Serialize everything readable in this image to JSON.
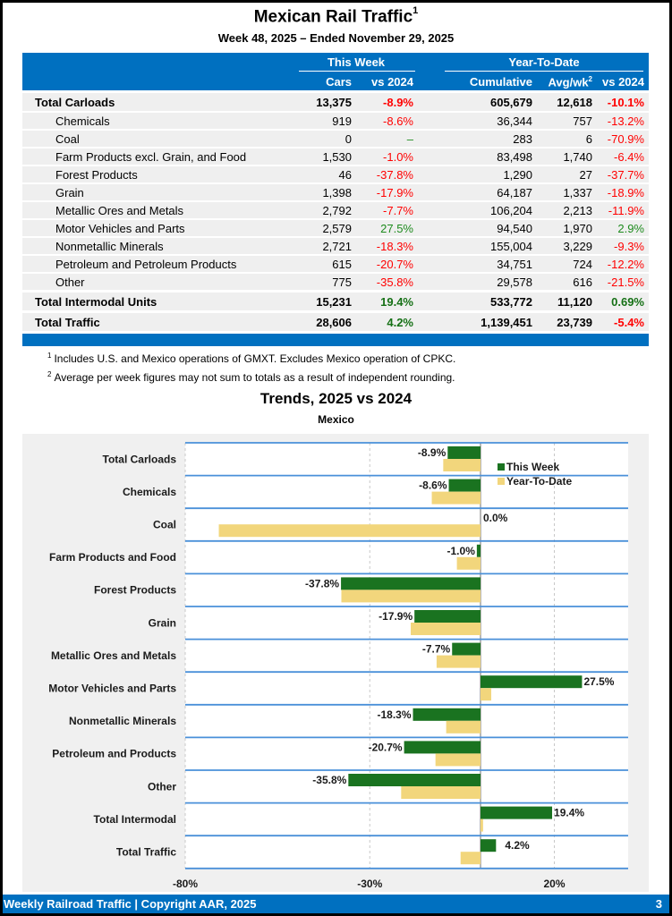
{
  "header": {
    "title": "Mexican Rail Traffic",
    "title_footnote": "1",
    "subtitle": "Week 48, 2025 – Ended November 29, 2025"
  },
  "table": {
    "groups": {
      "this_week": "This Week",
      "ytd": "Year-To-Date"
    },
    "columns": {
      "cars": "Cars",
      "tw_vs": "vs 2024",
      "cumulative": "Cumulative",
      "avg": "Avg/wk",
      "avg_footnote": "2",
      "ytd_vs": "vs 2024"
    },
    "rows": [
      {
        "label": "Total Carloads",
        "cars": "13,375",
        "tw_vs": "-8.9%",
        "tw_sign": "neg",
        "cum": "605,679",
        "avg": "12,618",
        "ytd_vs": "-10.1%",
        "ytd_sign": "neg",
        "type": "total"
      },
      {
        "label": "Chemicals",
        "cars": "919",
        "tw_vs": "-8.6%",
        "tw_sign": "neg",
        "cum": "36,344",
        "avg": "757",
        "ytd_vs": "-13.2%",
        "ytd_sign": "neg",
        "type": "sub"
      },
      {
        "label": "Coal",
        "cars": "0",
        "tw_vs": "–",
        "tw_sign": "neu",
        "cum": "283",
        "avg": "6",
        "ytd_vs": "-70.9%",
        "ytd_sign": "neg",
        "type": "sub"
      },
      {
        "label": "Farm Products excl. Grain, and Food",
        "cars": "1,530",
        "tw_vs": "-1.0%",
        "tw_sign": "neg",
        "cum": "83,498",
        "avg": "1,740",
        "ytd_vs": "-6.4%",
        "ytd_sign": "neg",
        "type": "sub"
      },
      {
        "label": "Forest Products",
        "cars": "46",
        "tw_vs": "-37.8%",
        "tw_sign": "neg",
        "cum": "1,290",
        "avg": "27",
        "ytd_vs": "-37.7%",
        "ytd_sign": "neg",
        "type": "sub"
      },
      {
        "label": "Grain",
        "cars": "1,398",
        "tw_vs": "-17.9%",
        "tw_sign": "neg",
        "cum": "64,187",
        "avg": "1,337",
        "ytd_vs": "-18.9%",
        "ytd_sign": "neg",
        "type": "sub"
      },
      {
        "label": "Metallic Ores and Metals",
        "cars": "2,792",
        "tw_vs": "-7.7%",
        "tw_sign": "neg",
        "cum": "106,204",
        "avg": "2,213",
        "ytd_vs": "-11.9%",
        "ytd_sign": "neg",
        "type": "sub"
      },
      {
        "label": "Motor Vehicles and Parts",
        "cars": "2,579",
        "tw_vs": "27.5%",
        "tw_sign": "pos",
        "cum": "94,540",
        "avg": "1,970",
        "ytd_vs": "2.9%",
        "ytd_sign": "pos",
        "type": "sub"
      },
      {
        "label": "Nonmetallic Minerals",
        "cars": "2,721",
        "tw_vs": "-18.3%",
        "tw_sign": "neg",
        "cum": "155,004",
        "avg": "3,229",
        "ytd_vs": "-9.3%",
        "ytd_sign": "neg",
        "type": "sub"
      },
      {
        "label": "Petroleum and Petroleum Products",
        "cars": "615",
        "tw_vs": "-20.7%",
        "tw_sign": "neg",
        "cum": "34,751",
        "avg": "724",
        "ytd_vs": "-12.2%",
        "ytd_sign": "neg",
        "type": "sub"
      },
      {
        "label": "Other",
        "cars": "775",
        "tw_vs": "-35.8%",
        "tw_sign": "neg",
        "cum": "29,578",
        "avg": "616",
        "ytd_vs": "-21.5%",
        "ytd_sign": "neg",
        "type": "sub"
      },
      {
        "label": "Total Intermodal Units",
        "cars": "15,231",
        "tw_vs": "19.4%",
        "tw_sign": "pos",
        "cum": "533,772",
        "avg": "11,120",
        "ytd_vs": "0.69%",
        "ytd_sign": "pos",
        "type": "total"
      },
      {
        "label": "Total Traffic",
        "cars": "28,606",
        "tw_vs": "4.2%",
        "tw_sign": "pos",
        "cum": "1,139,451",
        "avg": "23,739",
        "ytd_vs": "-5.4%",
        "ytd_sign": "neg",
        "type": "total"
      }
    ]
  },
  "notes": [
    {
      "mark": "1",
      "text": "Includes U.S. and Mexico operations of GMXT. Excludes Mexico operation of CPKC."
    },
    {
      "mark": "2",
      "text": "Average per week figures may not sum to totals as a result of independent rounding."
    }
  ],
  "chart_data": {
    "type": "bar",
    "orientation": "horizontal",
    "title": "Trends, 2025 vs 2024",
    "subtitle": "Mexico",
    "categories": [
      "Total Carloads",
      "Chemicals",
      "Coal",
      "Farm Products and Food",
      "Forest Products",
      "Grain",
      "Metallic Ores and Metals",
      "Motor Vehicles and Parts",
      "Nonmetallic Minerals",
      "Petroleum and Products",
      "Other",
      "Total Intermodal",
      "Total Traffic"
    ],
    "series": [
      {
        "name": "This Week",
        "color": "#1A7320",
        "values": [
          -8.9,
          -8.6,
          0.0,
          -1.0,
          -37.8,
          -17.9,
          -7.7,
          27.5,
          -18.3,
          -20.7,
          -35.8,
          19.4,
          4.2
        ],
        "labels": [
          "-8.9%",
          "-8.6%",
          "0.0%",
          "-1.0%",
          "-37.8%",
          "-17.9%",
          "-7.7%",
          "27.5%",
          "-18.3%",
          "-20.7%",
          "-35.8%",
          "19.4%",
          "4.2%"
        ]
      },
      {
        "name": "Year-To-Date",
        "color": "#F2D67C",
        "values": [
          -10.1,
          -13.2,
          -70.9,
          -6.4,
          -37.7,
          -18.9,
          -11.9,
          2.9,
          -9.3,
          -12.2,
          -21.5,
          0.69,
          -5.4
        ]
      }
    ],
    "xlim": [
      -80,
      40
    ],
    "xticks": [
      -80,
      -30,
      20
    ],
    "xtick_labels": [
      "-80%",
      "-30%",
      "20%"
    ],
    "gridlines": [
      -80,
      -30,
      20
    ],
    "legend": "top-right",
    "xlabel": "",
    "ylabel": ""
  },
  "footer": {
    "left": "Weekly Railroad Traffic | Copyright AAR, 2025",
    "page": "3"
  }
}
